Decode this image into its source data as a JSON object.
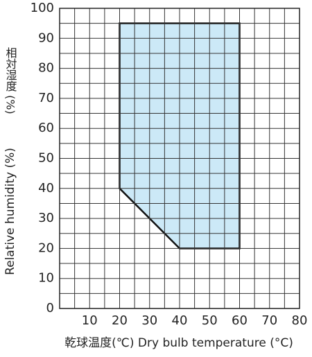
{
  "chart_data": {
    "type": "polygon",
    "x_label": "乾球温度(℃)  Dry bulb temperature (°C)",
    "y_label": "Relative humidity (%)",
    "y_label_jp": "相対湿度 (%)",
    "xlim": [
      0,
      80
    ],
    "ylim": [
      0,
      100
    ],
    "xticks": [
      10,
      20,
      30,
      40,
      50,
      60,
      70,
      80
    ],
    "yticks": [
      0,
      10,
      20,
      30,
      40,
      50,
      60,
      70,
      80,
      90,
      100
    ],
    "x_grid": [
      0,
      5,
      10,
      15,
      20,
      25,
      30,
      35,
      40,
      45,
      50,
      55,
      60,
      65,
      70,
      75,
      80
    ],
    "y_grid": [
      0,
      5,
      10,
      15,
      20,
      25,
      30,
      35,
      40,
      45,
      50,
      55,
      60,
      65,
      70,
      75,
      80,
      85,
      90,
      95,
      100
    ],
    "region": {
      "x": [
        20,
        60,
        60,
        40,
        20
      ],
      "y": [
        95,
        95,
        20,
        20,
        40
      ],
      "color": "#cce9f7"
    }
  }
}
